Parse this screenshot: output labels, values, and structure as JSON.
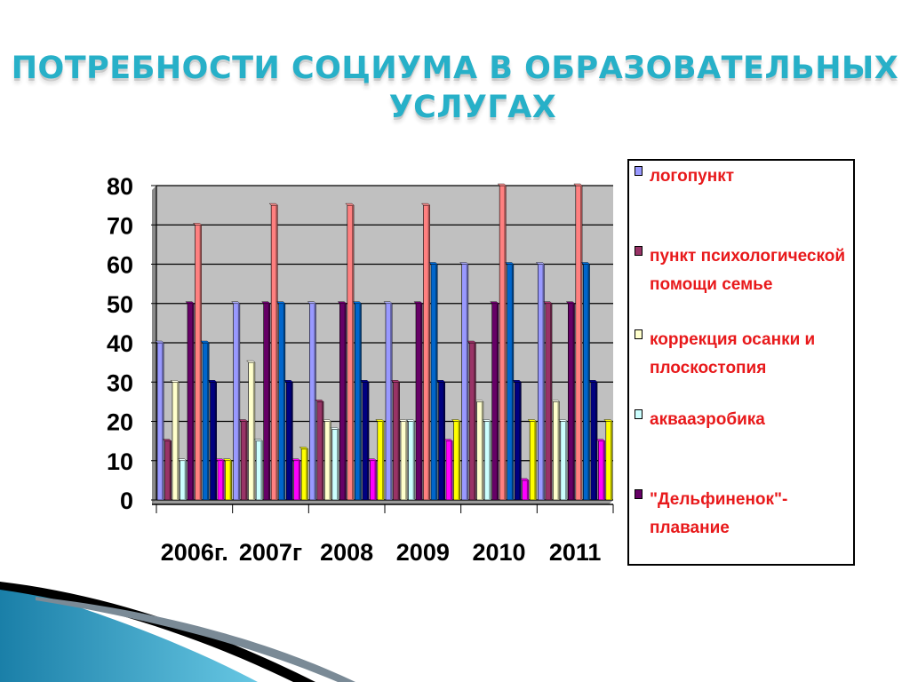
{
  "title_line1": "ПОТРЕБНОСТИ СОЦИУМА В ОБРАЗОВАТЕЛЬНЫХ",
  "title_line2": "УСЛУГАХ",
  "chart_data": {
    "type": "bar",
    "title": "ПОТРЕБНОСТИ СОЦИУМА В ОБРАЗОВАТЕЛЬНЫХ УСЛУГАХ",
    "categories": [
      "2006г.",
      "2007г",
      "2008",
      "2009",
      "2010",
      "2011"
    ],
    "ylim": [
      0,
      80
    ],
    "yticks": [
      "0",
      "10",
      "20",
      "30",
      "40",
      "50",
      "60",
      "70",
      "80"
    ],
    "grid": true,
    "legend_position": "right",
    "series": [
      {
        "name": "логопункт",
        "color": "#9999ff",
        "values": [
          40,
          50,
          50,
          50,
          60,
          60
        ]
      },
      {
        "name": "",
        "color": "#993366",
        "values": [
          15,
          20,
          25,
          30,
          40,
          50
        ]
      },
      {
        "name": "коррекция осанки и плоскостопия",
        "color": "#ffffcc",
        "values": [
          30,
          35,
          20,
          20,
          25,
          25
        ]
      },
      {
        "name": "аквааэробика",
        "color": "#ccffff",
        "values": [
          10,
          15,
          18,
          20,
          20,
          20
        ]
      },
      {
        "name": "\"Дельфиненок\"- плавание",
        "color": "#660066",
        "values": [
          50,
          50,
          50,
          50,
          50,
          50
        ]
      },
      {
        "name": "",
        "color": "#ff8080",
        "values": [
          70,
          75,
          75,
          75,
          80,
          80
        ]
      },
      {
        "name": "",
        "color": "#0066cc",
        "values": [
          40,
          50,
          50,
          60,
          60,
          60
        ]
      },
      {
        "name": "",
        "color": "#000080",
        "values": [
          30,
          30,
          30,
          30,
          30,
          30
        ]
      },
      {
        "name": "",
        "color": "#ff00ff",
        "values": [
          10,
          10,
          10,
          15,
          5,
          15
        ]
      },
      {
        "name": "",
        "color": "#ffff00",
        "values": [
          10,
          13,
          20,
          20,
          20,
          20
        ]
      }
    ]
  },
  "legend": [
    {
      "label": "логопункт",
      "color": "#9999ff"
    },
    {
      "label": "пункт психологической помощи семье",
      "color": "#993366"
    },
    {
      "label": "коррекция осанки и плоскостопия",
      "color": "#ffffcc"
    },
    {
      "label": "аквааэробика",
      "color": "#ccffff"
    },
    {
      "label": "\"Дельфиненок\"- плавание",
      "color": "#660066"
    }
  ]
}
